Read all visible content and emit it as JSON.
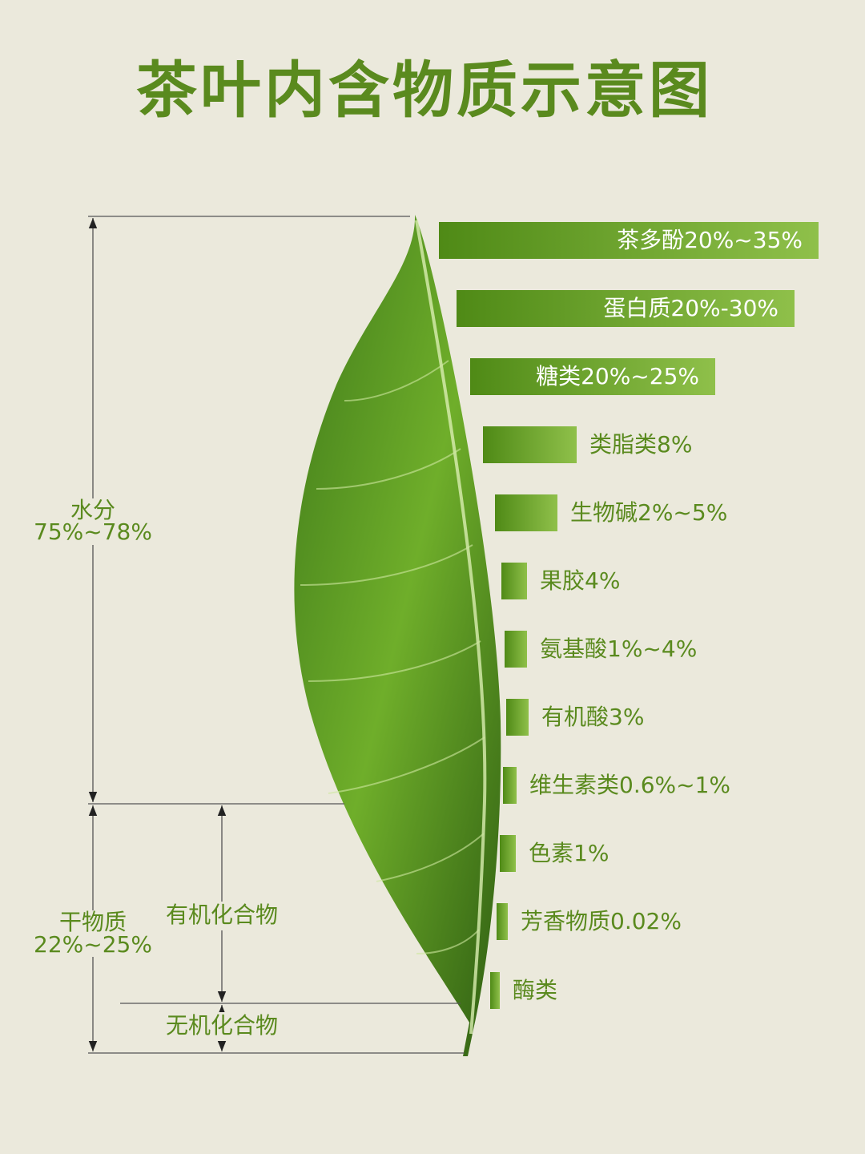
{
  "title": "茶叶内含物质示意图",
  "water": {
    "label": "水分",
    "range": "75%~78%"
  },
  "dry_matter": {
    "label": "干物质",
    "range": "22%~25%"
  },
  "organic": "有机化合物",
  "inorganic": "无机化合物",
  "components": [
    "茶多酚20%~35%",
    "蛋白质20%-30%",
    "糖类20%~25%",
    "类脂类8%",
    "生物碱2%~5%",
    "果胶4%",
    "氨基酸1%~4%",
    "有机酸3%",
    "维生素类0.6%~1%",
    "色素1%",
    "芳香物质0.02%",
    "酶类"
  ]
}
